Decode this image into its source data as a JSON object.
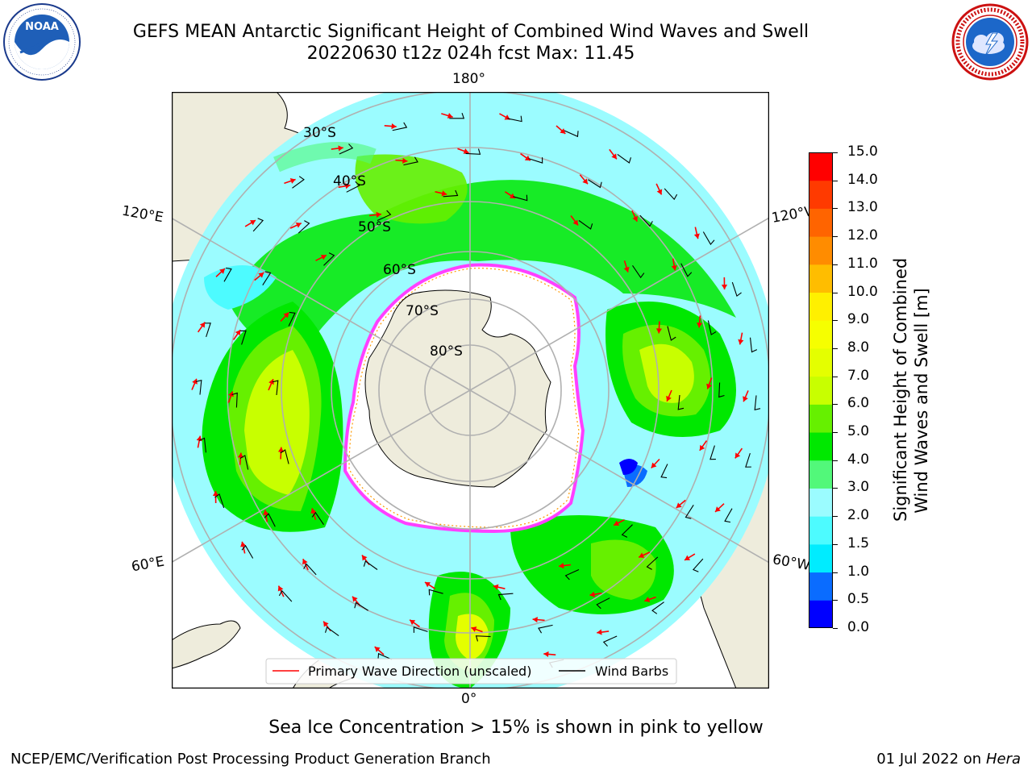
{
  "header": {
    "title_line1": "GEFS MEAN Antarctic Significant Height of Combined Wind Waves and Swell",
    "title_line2": "20220630 t12z 024h fcst   Max: 11.45"
  },
  "logos": {
    "noaa": {
      "name": "noaa-logo",
      "text": "NOAA",
      "ring_text": "NATIONAL OCEANIC AND ATMOSPHERIC ADMINISTRATION · U.S. DEPARTMENT OF COMMERCE"
    },
    "nws": {
      "name": "nws-logo",
      "ring_text": "NATIONAL WEATHER SERVICE"
    }
  },
  "map": {
    "projection": "south-polar-stereographic",
    "longitude_labels": {
      "top": "180°",
      "bottom": "0°",
      "left_upper": "120°E",
      "left_lower": "60°E",
      "right_upper": "120°W",
      "right_lower": "60°W"
    },
    "latitude_labels": [
      "30°S",
      "40°S",
      "50°S",
      "60°S",
      "70°S",
      "80°S"
    ],
    "legend": {
      "wave_label": "Primary Wave Direction (unscaled)",
      "wind_label": "Wind Barbs",
      "wave_color": "#ff0000",
      "wind_color": "#000000"
    },
    "colors": {
      "land": "#eeecdc",
      "ice": "#ffffff",
      "ice_edge": "#ff40ff",
      "graticule": "#b0b0b0"
    }
  },
  "colorbar": {
    "title_line1": "Significant Height of Combined",
    "title_line2": "Wind Waves and Swell [m]",
    "ticks": [
      "0.0",
      "0.5",
      "1.0",
      "1.5",
      "2.0",
      "3.0",
      "4.0",
      "5.0",
      "6.0",
      "7.0",
      "8.0",
      "9.0",
      "10.0",
      "11.0",
      "12.0",
      "13.0",
      "14.0",
      "15.0"
    ],
    "levels": [
      {
        "from": 0.0,
        "to": 0.5,
        "color": "#0000ff"
      },
      {
        "from": 0.5,
        "to": 1.0,
        "color": "#0a6cff"
      },
      {
        "from": 1.0,
        "to": 1.5,
        "color": "#00ecff"
      },
      {
        "from": 1.5,
        "to": 2.0,
        "color": "#4dfbff"
      },
      {
        "from": 2.0,
        "to": 3.0,
        "color": "#9bfcff"
      },
      {
        "from": 3.0,
        "to": 4.0,
        "color": "#52f87a"
      },
      {
        "from": 4.0,
        "to": 5.0,
        "color": "#00e800"
      },
      {
        "from": 5.0,
        "to": 6.0,
        "color": "#66f000"
      },
      {
        "from": 6.0,
        "to": 7.0,
        "color": "#c8ff00"
      },
      {
        "from": 7.0,
        "to": 8.0,
        "color": "#e4ff00"
      },
      {
        "from": 8.0,
        "to": 9.0,
        "color": "#f6ff00"
      },
      {
        "from": 9.0,
        "to": 10.0,
        "color": "#fff000"
      },
      {
        "from": 10.0,
        "to": 11.0,
        "color": "#ffbd00"
      },
      {
        "from": 11.0,
        "to": 12.0,
        "color": "#ff8c00"
      },
      {
        "from": 12.0,
        "to": 13.0,
        "color": "#ff6400"
      },
      {
        "from": 13.0,
        "to": 14.0,
        "color": "#ff3a00"
      },
      {
        "from": 14.0,
        "to": 15.0,
        "color": "#ff0000"
      }
    ]
  },
  "caption": "Sea Ice Concentration > 15% is shown in pink to yellow",
  "footer": {
    "left": "NCEP/EMC/Verification Post Processing Product Generation Branch",
    "right_prefix": "01 Jul 2022 on ",
    "right_machine": "Hera"
  }
}
